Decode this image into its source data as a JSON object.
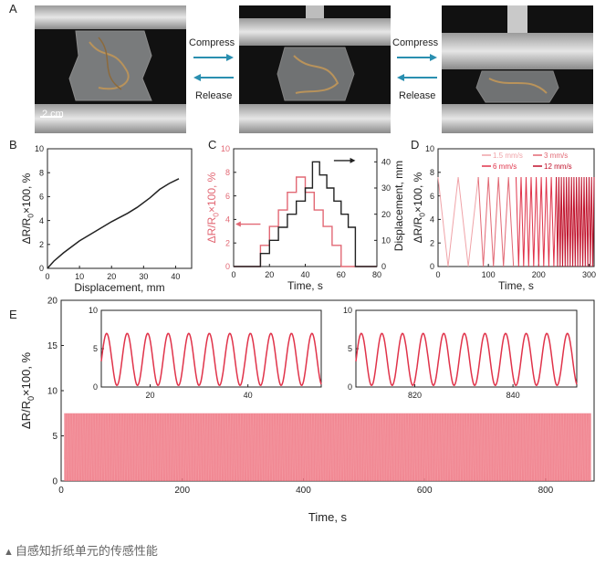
{
  "panels": {
    "a": "A",
    "b": "B",
    "c": "C",
    "d": "D",
    "e": "E"
  },
  "photos": {
    "scale_bar": "2 cm",
    "compress_label": "Compress",
    "release_label": "Release",
    "arrow_color": "#2a8fb0"
  },
  "caption": {
    "marker": "▲",
    "text": "自感知折纸单元的传感性能"
  },
  "colors": {
    "black": "#222222",
    "red_light": "#f0a3a8",
    "red_mid": "#e26874",
    "red": "#e0334a",
    "red_dark": "#c0102a",
    "pink_fill": "#ee7380"
  },
  "chart_data": [
    {
      "panel": "B",
      "type": "line",
      "xlabel": "Displacement, mm",
      "ylabel": "ΔR/R0×100, %",
      "xlim": [
        0,
        45
      ],
      "ylim": [
        0,
        10
      ],
      "xticks": [
        0,
        10,
        20,
        30,
        40
      ],
      "yticks": [
        0,
        2,
        4,
        6,
        8,
        10
      ],
      "series": [
        {
          "x": [
            0,
            2,
            5,
            10,
            15,
            20,
            25,
            28,
            32,
            35,
            38,
            41
          ],
          "y": [
            0,
            0.6,
            1.3,
            2.3,
            3.1,
            3.9,
            4.6,
            5.1,
            5.9,
            6.6,
            7.1,
            7.5
          ]
        }
      ]
    },
    {
      "panel": "C",
      "type": "line",
      "xlabel": "Time, s",
      "ylabel": "ΔR/R0×100, %",
      "y2label": "Displacement, mm",
      "xlim": [
        0,
        80
      ],
      "ylim": [
        0,
        10
      ],
      "y2lim": [
        0,
        45
      ],
      "xticks": [
        0,
        20,
        40,
        60,
        80
      ],
      "yticks": [
        0,
        2,
        4,
        6,
        8,
        10
      ],
      "y2ticks": [
        0,
        10,
        20,
        30,
        40
      ],
      "series": [
        {
          "axis": "y",
          "color": "#e26874",
          "x": [
            0,
            15,
            15,
            20,
            20,
            25,
            25,
            30,
            30,
            35,
            35,
            40,
            40,
            45,
            45,
            50,
            50,
            55,
            55,
            60,
            60,
            65,
            65,
            70,
            70,
            80
          ],
          "y": [
            0,
            0,
            1.8,
            1.8,
            3.4,
            3.4,
            4.8,
            4.8,
            6.3,
            6.3,
            7.6,
            7.6,
            6.3,
            6.3,
            4.8,
            4.8,
            3.4,
            3.4,
            1.8,
            1.8,
            0,
            0,
            0,
            0,
            0,
            0
          ]
        },
        {
          "axis": "y2",
          "color": "#222222",
          "x": [
            0,
            15,
            15,
            20,
            20,
            25,
            25,
            30,
            30,
            35,
            35,
            40,
            40,
            44,
            44,
            48,
            48,
            52,
            52,
            56,
            56,
            60,
            60,
            64,
            64,
            68,
            68,
            80
          ],
          "y": [
            0,
            0,
            5,
            5,
            10,
            10,
            15,
            15,
            20,
            20,
            25,
            25,
            30,
            30,
            40,
            40,
            35,
            35,
            30,
            30,
            25,
            25,
            20,
            20,
            15,
            15,
            0,
            0
          ]
        }
      ]
    },
    {
      "panel": "D",
      "type": "line",
      "xlabel": "Time, s",
      "ylabel": "ΔR/R0×100, %",
      "xlim": [
        0,
        310
      ],
      "ylim": [
        0,
        10
      ],
      "xticks": [
        0,
        100,
        200,
        300
      ],
      "yticks": [
        0,
        2,
        4,
        6,
        8,
        10
      ],
      "series": [
        {
          "name": "1.5 mm/s",
          "color": "#f0a3a8",
          "t_start": 0,
          "t_end": 80,
          "period": 40,
          "amplitude": 7.6
        },
        {
          "name": "3 mm/s",
          "color": "#e26874",
          "t_start": 80,
          "t_end": 155,
          "period": 20,
          "amplitude": 7.6
        },
        {
          "name": "6 mm/s",
          "color": "#e0334a",
          "t_start": 155,
          "t_end": 235,
          "period": 10,
          "amplitude": 7.6
        },
        {
          "name": "12 mm/s",
          "color": "#c0102a",
          "t_start": 235,
          "t_end": 310,
          "period": 5,
          "amplitude": 7.6
        }
      ]
    },
    {
      "panel": "E",
      "type": "area",
      "xlabel": "Time, s",
      "ylabel": "ΔR/R0×100, %",
      "xlim": [
        0,
        880
      ],
      "ylim": [
        0,
        20
      ],
      "xticks": [
        0,
        200,
        400,
        600,
        800
      ],
      "yticks": [
        0,
        5,
        10,
        15,
        20
      ],
      "series": [
        {
          "t_start": 5,
          "t_end": 875,
          "period": 4.2,
          "amplitude": 7.5
        }
      ],
      "insets": [
        {
          "xlim": [
            10,
            55
          ],
          "ylim": [
            0,
            10
          ],
          "xticks": [
            20,
            40
          ],
          "yticks": [
            0,
            5,
            10
          ],
          "period": 4.2,
          "amplitude": 6.8
        },
        {
          "xlim": [
            808,
            853
          ],
          "ylim": [
            0,
            10
          ],
          "xticks": [
            820,
            840
          ],
          "yticks": [
            0,
            5,
            10
          ],
          "period": 4.2,
          "amplitude": 6.8
        }
      ]
    }
  ]
}
